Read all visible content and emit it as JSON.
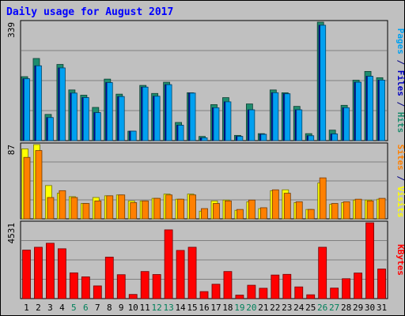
{
  "chart_data": [
    {
      "type": "bar",
      "title": "Daily usage for August 2017",
      "ylabel_parts": [
        {
          "text": "Pages",
          "color": "#00a0f0"
        },
        {
          "text": " / ",
          "color": "#000080"
        },
        {
          "text": "Files",
          "color": "#0000c0"
        },
        {
          "text": " / ",
          "color": "#000080"
        },
        {
          "text": "Hits",
          "color": "#1e8c6e"
        }
      ],
      "ymax_label": "339",
      "ylim": [
        0,
        339
      ],
      "categories": [
        "1",
        "2",
        "3",
        "4",
        "5",
        "6",
        "7",
        "8",
        "9",
        "10",
        "11",
        "12",
        "13",
        "14",
        "15",
        "16",
        "17",
        "18",
        "19",
        "20",
        "21",
        "22",
        "23",
        "24",
        "25",
        "26",
        "27",
        "28",
        "29",
        "30",
        "31"
      ],
      "series": [
        {
          "name": "Hits",
          "color": "#1e8c6e",
          "values": [
            183,
            235,
            75,
            218,
            145,
            130,
            95,
            176,
            133,
            27,
            158,
            135,
            167,
            52,
            137,
            12,
            103,
            123,
            15,
            105,
            20,
            145,
            137,
            98,
            20,
            339,
            30,
            101,
            173,
            198,
            180
          ]
        },
        {
          "name": "Files",
          "color": "#0000c0",
          "values": [
            177,
            214,
            66,
            208,
            136,
            123,
            80,
            166,
            126,
            27,
            153,
            127,
            160,
            44,
            136,
            8,
            94,
            111,
            12,
            88,
            18,
            137,
            134,
            88,
            14,
            330,
            19,
            94,
            167,
            184,
            173
          ]
        },
        {
          "name": "Pages",
          "color": "#00a0f0",
          "values": [
            177,
            214,
            66,
            208,
            136,
            123,
            80,
            166,
            126,
            27,
            153,
            127,
            160,
            44,
            136,
            8,
            94,
            111,
            12,
            88,
            18,
            137,
            134,
            88,
            14,
            330,
            19,
            94,
            167,
            184,
            173
          ]
        }
      ]
    },
    {
      "type": "bar",
      "ylabel_parts": [
        {
          "text": "Sites",
          "color": "#ff8000"
        },
        {
          "text": " / ",
          "color": "#000080"
        },
        {
          "text": "Visits",
          "color": "#ffff00"
        }
      ],
      "ymax_label": "87",
      "ylim": [
        0,
        87
      ],
      "categories": [
        "1",
        "2",
        "3",
        "4",
        "5",
        "6",
        "7",
        "8",
        "9",
        "10",
        "11",
        "12",
        "13",
        "14",
        "15",
        "16",
        "17",
        "18",
        "19",
        "20",
        "21",
        "22",
        "23",
        "24",
        "25",
        "26",
        "27",
        "28",
        "29",
        "30",
        "31"
      ],
      "series": [
        {
          "name": "Visits",
          "color": "#ffff00",
          "values": [
            82,
            87,
            39,
            30,
            26,
            18,
            25,
            27,
            28,
            21,
            21,
            24,
            29,
            23,
            29,
            9,
            21,
            22,
            10,
            20,
            12,
            33,
            34,
            19,
            11,
            42,
            17,
            19,
            22,
            22,
            23
          ]
        },
        {
          "name": "Sites",
          "color": "#ff8000",
          "values": [
            72,
            80,
            25,
            33,
            25,
            18,
            21,
            27,
            28,
            19,
            21,
            24,
            28,
            23,
            28,
            12,
            18,
            21,
            11,
            22,
            13,
            34,
            30,
            20,
            11,
            48,
            18,
            20,
            23,
            21,
            24
          ]
        }
      ]
    },
    {
      "type": "bar",
      "ylabel_parts": [
        {
          "text": "KBytes",
          "color": "#ff0000"
        }
      ],
      "ymax_label": "4531",
      "ylim": [
        0,
        4531
      ],
      "categories": [
        "1",
        "2",
        "3",
        "4",
        "5",
        "6",
        "7",
        "8",
        "9",
        "10",
        "11",
        "12",
        "13",
        "14",
        "15",
        "16",
        "17",
        "18",
        "19",
        "20",
        "21",
        "22",
        "23",
        "24",
        "25",
        "26",
        "27",
        "28",
        "29",
        "30",
        "31"
      ],
      "weekend_days": [
        "5",
        "6",
        "12",
        "13",
        "19",
        "20",
        "26",
        "27"
      ],
      "series": [
        {
          "name": "KBytes",
          "color": "#ff0000",
          "values": [
            2900,
            3070,
            3310,
            2980,
            1540,
            1300,
            760,
            2480,
            1430,
            250,
            1620,
            1440,
            4110,
            2880,
            3070,
            420,
            860,
            1620,
            210,
            800,
            620,
            1410,
            1450,
            700,
            230,
            3070,
            630,
            1190,
            1530,
            4531,
            1770
          ]
        }
      ]
    }
  ]
}
